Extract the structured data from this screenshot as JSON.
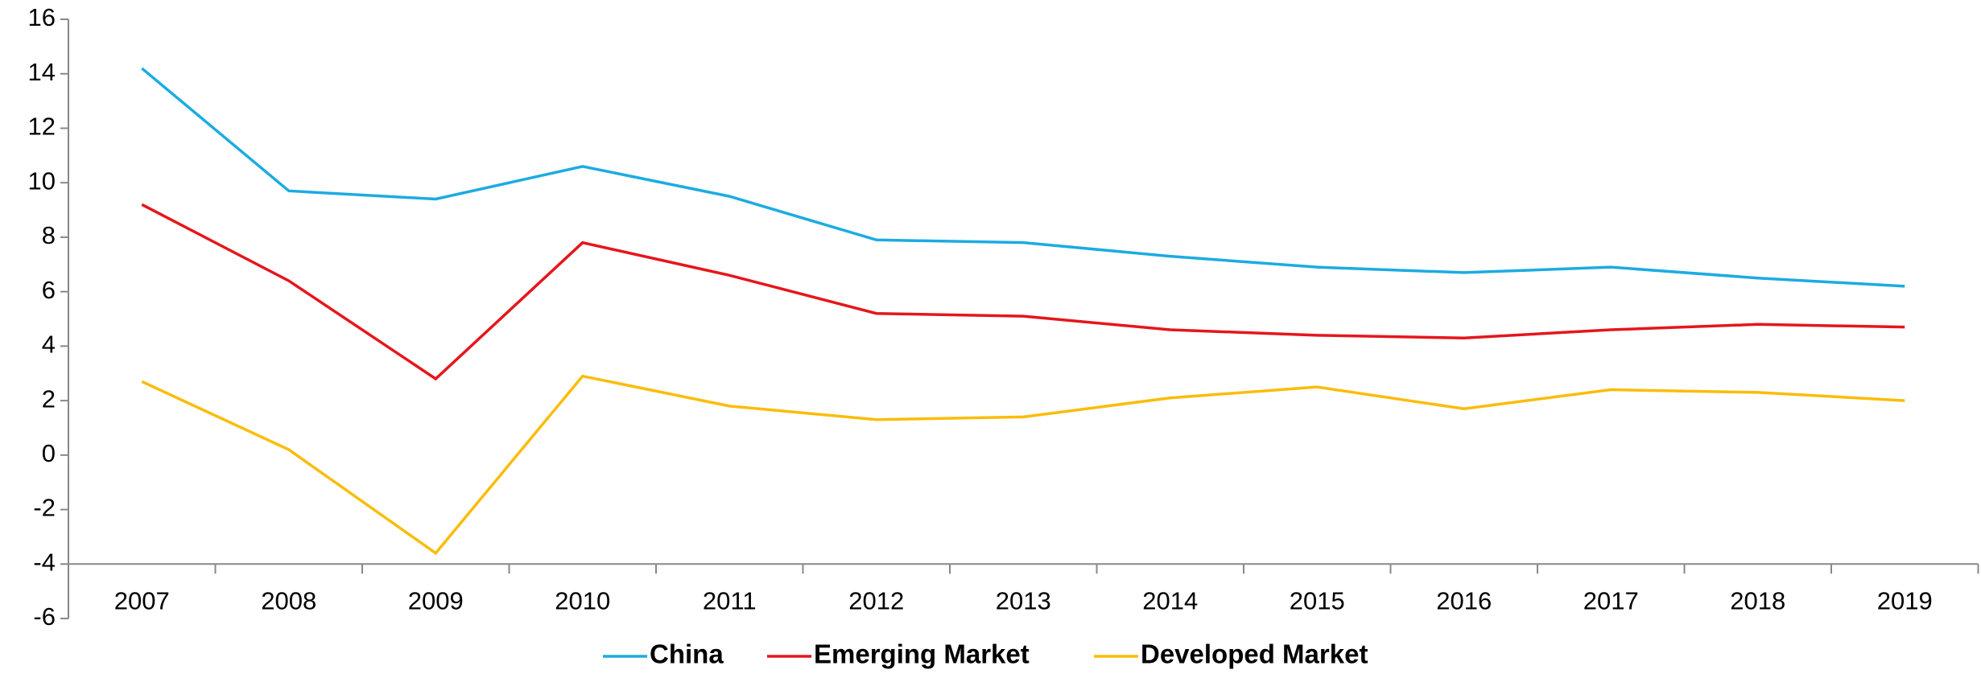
{
  "chart_data": {
    "type": "line",
    "categories": [
      "2007",
      "2008",
      "2009",
      "2010",
      "2011",
      "2012",
      "2013",
      "2014",
      "2015",
      "2016",
      "2017",
      "2018",
      "2019"
    ],
    "series": [
      {
        "name": "China",
        "color": "#1cabe2",
        "values": [
          14.2,
          9.7,
          9.4,
          10.6,
          9.5,
          7.9,
          7.8,
          7.3,
          6.9,
          6.7,
          6.9,
          6.5,
          6.2
        ]
      },
      {
        "name": "Emerging Market",
        "color": "#e5161b",
        "values": [
          9.2,
          6.4,
          2.8,
          7.8,
          6.6,
          5.2,
          5.1,
          4.6,
          4.4,
          4.3,
          4.6,
          4.8,
          4.7
        ]
      },
      {
        "name": "Developed Market",
        "color": "#fbbc0a",
        "values": [
          2.7,
          0.2,
          -3.6,
          2.9,
          1.8,
          1.3,
          1.4,
          2.1,
          2.5,
          1.7,
          2.4,
          2.3,
          2.0
        ]
      }
    ],
    "ylim": [
      -6,
      16
    ],
    "yticks": [
      -6,
      -4,
      -2,
      0,
      2,
      4,
      6,
      8,
      10,
      12,
      14,
      16
    ],
    "grid": false,
    "legend": "bottom"
  }
}
